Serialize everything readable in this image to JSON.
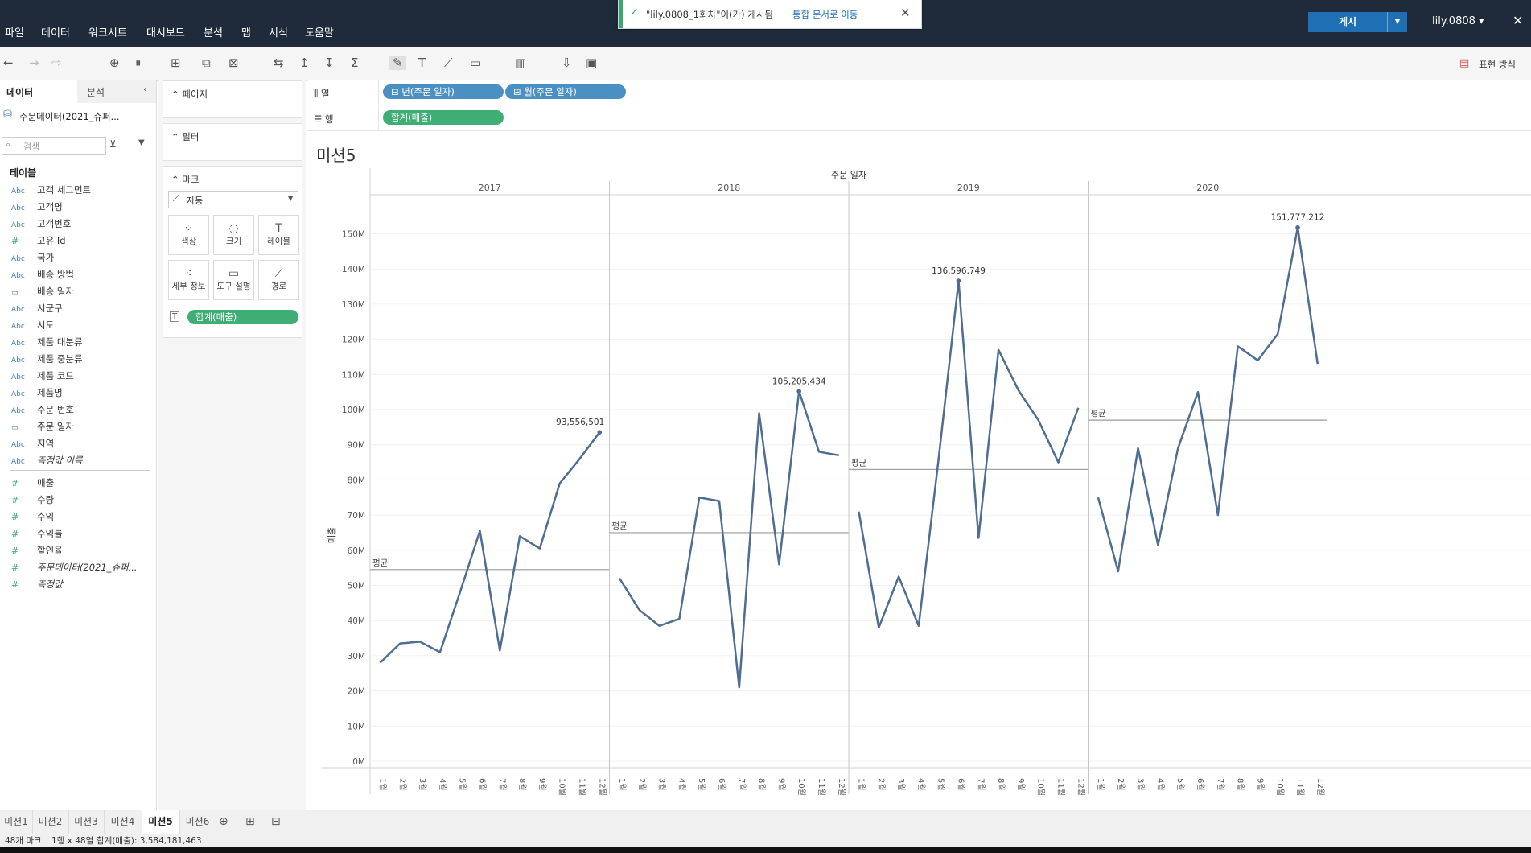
{
  "menu": [
    "파일",
    "데이터",
    "워크시트",
    "대시보드",
    "분석",
    "맵",
    "서식",
    "도움말"
  ],
  "notice": {
    "text": "\"lily.0808_1회차\"이(가) 게시됨",
    "link": "통합 문서로 이동"
  },
  "header": {
    "publish_label": "게시",
    "user": "lily.0808 ▾",
    "close": "✕"
  },
  "toolbar": {
    "show_me": "표현 방식"
  },
  "data_pane": {
    "tab_data": "데이터",
    "tab_analysis": "분석",
    "datasource": "주문데이터(2021_슈퍼...",
    "search_placeholder": "검색",
    "tables_label": "테이블",
    "dimensions": [
      {
        "type": "Abc",
        "name": "고객 세그먼트"
      },
      {
        "type": "Abc",
        "name": "고객명"
      },
      {
        "type": "Abc",
        "name": "고객번호"
      },
      {
        "type": "#",
        "name": "고유 Id"
      },
      {
        "type": "Abc",
        "name": "국가"
      },
      {
        "type": "Abc",
        "name": "배송 방법"
      },
      {
        "type": "▭",
        "name": "배송 일자"
      },
      {
        "type": "Abc",
        "name": "시군구"
      },
      {
        "type": "Abc",
        "name": "시도"
      },
      {
        "type": "Abc",
        "name": "제품 대분류"
      },
      {
        "type": "Abc",
        "name": "제품 중분류"
      },
      {
        "type": "Abc",
        "name": "제품 코드"
      },
      {
        "type": "Abc",
        "name": "제품명"
      },
      {
        "type": "Abc",
        "name": "주문 번호"
      },
      {
        "type": "▭",
        "name": "주문 일자"
      },
      {
        "type": "Abc",
        "name": "지역"
      },
      {
        "type": "Abc",
        "name": "측정값 이름"
      }
    ],
    "measures": [
      {
        "type": "#",
        "name": "매출"
      },
      {
        "type": "#",
        "name": "수량"
      },
      {
        "type": "#",
        "name": "수익"
      },
      {
        "type": "#",
        "name": "수익률"
      },
      {
        "type": "#",
        "name": "할인율"
      },
      {
        "type": "#",
        "name": "주문데이터(2021_슈퍼..."
      },
      {
        "type": "#",
        "name": "측정값"
      }
    ]
  },
  "shelves": {
    "pages": "페이지",
    "filters": "필터",
    "marks": "마크",
    "mark_type": "자동",
    "mark_buttons": [
      "색상",
      "크기",
      "레이블",
      "세부 정보",
      "도구 설명",
      "경로"
    ],
    "mark_pill": "합계(매출)",
    "columns_label": "열",
    "rows_label": "행",
    "col_pills": [
      "⊟ 년(주문 일자)",
      "⊞ 월(주문 일자)"
    ],
    "row_pill": "합계(매출)"
  },
  "sheet_title": "미션5",
  "chart_data": {
    "type": "line",
    "title": "",
    "column_header": "주문 일자",
    "ylabel": "매출",
    "ylim": [
      0,
      158000000
    ],
    "yticks": [
      "0M",
      "10M",
      "20M",
      "30M",
      "40M",
      "50M",
      "60M",
      "70M",
      "80M",
      "90M",
      "100M",
      "110M",
      "120M",
      "130M",
      "140M",
      "150M"
    ],
    "month_labels": [
      "1월",
      "2월",
      "3월",
      "4월",
      "5월",
      "6월",
      "7월",
      "8월",
      "9월",
      "10월",
      "11월",
      "12월"
    ],
    "avg_label": "평균",
    "color": "#4e6d93",
    "series": [
      {
        "name": "2017",
        "values": [
          28000000,
          33500000,
          34000000,
          31000000,
          48000000,
          65500000,
          31500000,
          64000000,
          60500000,
          79000000,
          86000000,
          93556501
        ],
        "average": 54500000,
        "label": "93,556,501",
        "label_index": 11
      },
      {
        "name": "2018",
        "values": [
          52000000,
          43000000,
          38500000,
          40500000,
          75000000,
          74000000,
          21000000,
          99000000,
          56000000,
          105205434,
          88000000,
          87000000
        ],
        "average": 65000000,
        "label": "105,205,434",
        "label_index": 9
      },
      {
        "name": "2019",
        "values": [
          71000000,
          38000000,
          52500000,
          38500000,
          86000000,
          136596749,
          63500000,
          117000000,
          105500000,
          97000000,
          85000000,
          100500000
        ],
        "average": 83000000,
        "label": "136,596,749",
        "label_index": 5
      },
      {
        "name": "2020",
        "values": [
          75000000,
          54000000,
          89000000,
          61500000,
          89000000,
          105000000,
          70000000,
          118000000,
          114000000,
          121500000,
          151777212,
          113000000
        ],
        "average": 97000000,
        "label": "151,777,212",
        "label_index": 10
      }
    ]
  },
  "tabs": [
    "미션1",
    "미션2",
    "미션3",
    "미션4",
    "미션5",
    "미션6"
  ],
  "active_tab": "미션5",
  "status": {
    "marks": "48개 마크",
    "dims": "1행 x 48열",
    "sum": "합계(매출): 3,584,181,463"
  }
}
